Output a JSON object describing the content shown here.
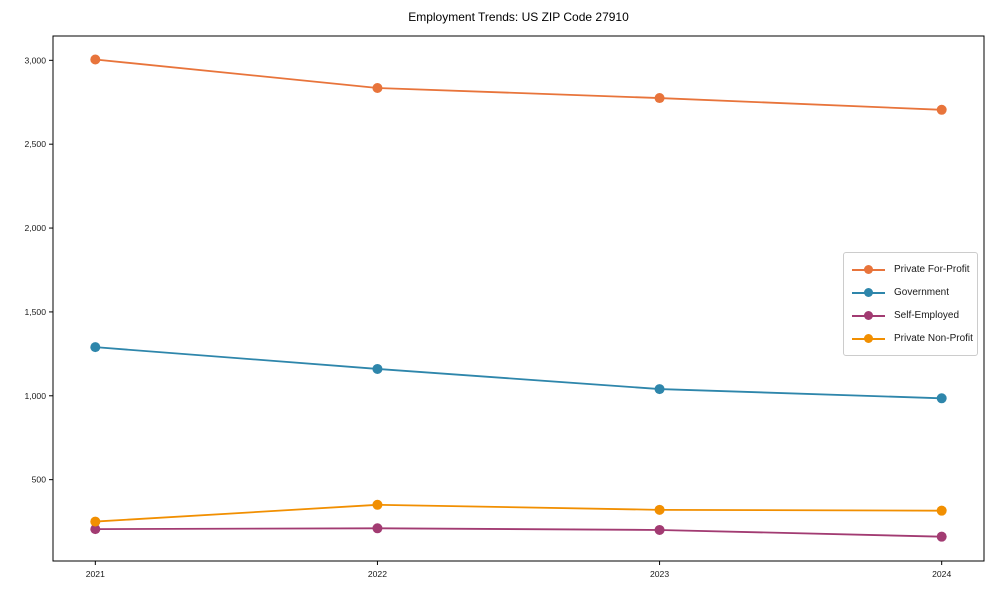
{
  "chart_data": {
    "type": "line",
    "title": "Employment Trends: US ZIP Code 27910",
    "xlabel": "",
    "ylabel": "",
    "x": [
      2021,
      2022,
      2023,
      2024
    ],
    "series": [
      {
        "name": "Private For-Profit",
        "color": "#E8743B",
        "values": [
          3005,
          2835,
          2775,
          2705
        ]
      },
      {
        "name": "Government",
        "color": "#2E86AB",
        "values": [
          1290,
          1160,
          1040,
          985
        ]
      },
      {
        "name": "Self-Employed",
        "color": "#A23B72",
        "values": [
          205,
          210,
          200,
          160
        ]
      },
      {
        "name": "Private Non-Profit",
        "color": "#F18F01",
        "values": [
          250,
          350,
          320,
          315
        ]
      }
    ],
    "xticks": [
      2021,
      2022,
      2023,
      2024
    ],
    "yticks": [
      500,
      1000,
      1500,
      2000,
      2500,
      3000
    ],
    "xlim": [
      2020.85,
      2024.15
    ],
    "ylim": [
      15,
      3145
    ],
    "grid": false,
    "legend_position": "right-middle",
    "marker": "circle",
    "axis_color": "#000000"
  }
}
